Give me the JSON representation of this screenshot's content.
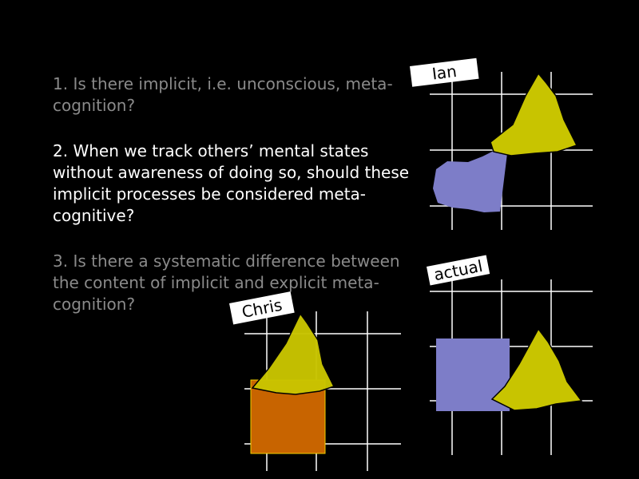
{
  "questions": [
    {
      "text": "1. Is there implicit, i.e. unconscious, meta-cognition?",
      "emphasis": "dim"
    },
    {
      "text": "2. When we track others’ mental states without awareness of doing so, should these implicit processes be considered meta-cognitive?",
      "emphasis": "bright"
    },
    {
      "text": "3. Is there a systematic difference between the content of implicit and explicit meta-cognition?",
      "emphasis": "dim"
    }
  ],
  "panels": {
    "ian": {
      "label": "Ian"
    },
    "actual": {
      "label": "actual"
    },
    "chris": {
      "label": "Chris"
    }
  },
  "colors": {
    "yellow": "#c8c400",
    "blue": "#7d7dc8",
    "orange": "#c86400",
    "grid": "#ffffff"
  }
}
